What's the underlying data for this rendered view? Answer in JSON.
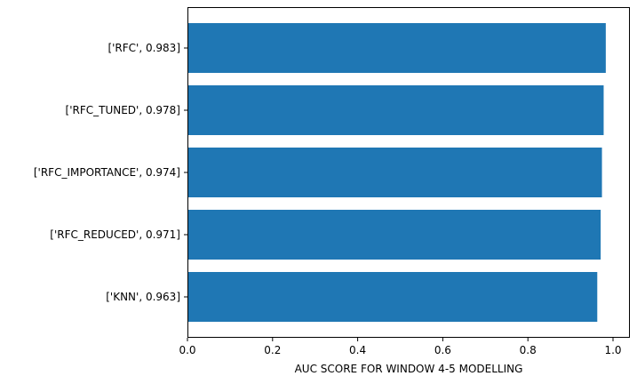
{
  "chart_data": {
    "type": "bar",
    "orientation": "horizontal",
    "categories": [
      "['RFC', 0.983]",
      "['RFC_TUNED', 0.978]",
      "['RFC_IMPORTANCE', 0.974]",
      "['RFC_REDUCED', 0.971]",
      "['KNN', 0.963]"
    ],
    "values": [
      0.983,
      0.978,
      0.974,
      0.971,
      0.963
    ],
    "title": "",
    "xlabel": "AUC SCORE FOR WINDOW 4-5 MODELLING",
    "ylabel": "",
    "xlim": [
      0,
      1.0
    ],
    "xticks": [
      "0.0",
      "0.2",
      "0.4",
      "0.6",
      "0.8",
      "1.0"
    ],
    "bar_color": "#1f77b4",
    "grid": false,
    "legend": "none"
  }
}
